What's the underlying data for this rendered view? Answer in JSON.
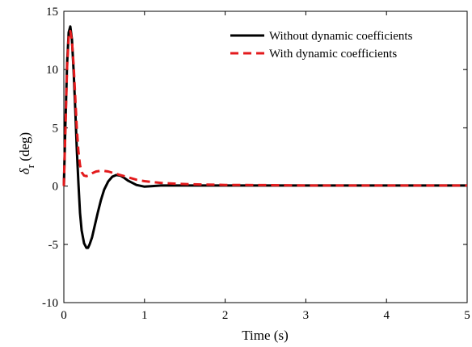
{
  "chart_data": {
    "type": "line",
    "title": "",
    "xlabel": "Time (s)",
    "ylabel": {
      "symbol": "δ",
      "subscript": "r",
      "unit": " (deg)"
    },
    "xlim": [
      0,
      5
    ],
    "ylim": [
      -10,
      15
    ],
    "xticks": [
      0,
      1,
      2,
      3,
      4,
      5
    ],
    "yticks": [
      -10,
      -5,
      0,
      5,
      10,
      15
    ],
    "grid": false,
    "legend_position": "top-right",
    "series": [
      {
        "name": "Without dynamic coefficients",
        "color": "#000000",
        "style": "solid",
        "x": [
          0,
          0.02,
          0.04,
          0.06,
          0.08,
          0.1,
          0.12,
          0.14,
          0.16,
          0.18,
          0.2,
          0.22,
          0.25,
          0.28,
          0.3,
          0.32,
          0.35,
          0.38,
          0.42,
          0.46,
          0.5,
          0.55,
          0.6,
          0.65,
          0.7,
          0.75,
          0.8,
          0.9,
          1.0,
          1.1,
          1.2,
          1.5,
          2.0,
          3.0,
          4.0,
          5.0
        ],
        "y": [
          0,
          5.5,
          10.5,
          13.2,
          13.7,
          12.6,
          10.0,
          6.8,
          3.2,
          0.3,
          -2.3,
          -3.8,
          -4.9,
          -5.3,
          -5.3,
          -5.0,
          -4.4,
          -3.5,
          -2.3,
          -1.2,
          -0.3,
          0.4,
          0.8,
          0.95,
          0.9,
          0.7,
          0.45,
          0.1,
          -0.05,
          0.0,
          0.05,
          0.05,
          0.05,
          0.05,
          0.05,
          0.05
        ]
      },
      {
        "name": "With dynamic coefficients",
        "color": "#e31a1c",
        "style": "dashed",
        "x": [
          0,
          0.02,
          0.04,
          0.06,
          0.08,
          0.1,
          0.12,
          0.14,
          0.16,
          0.18,
          0.2,
          0.22,
          0.25,
          0.28,
          0.3,
          0.35,
          0.4,
          0.45,
          0.5,
          0.55,
          0.6,
          0.7,
          0.8,
          0.9,
          1.0,
          1.2,
          1.4,
          1.6,
          2.0,
          2.5,
          3.0,
          4.0,
          5.0
        ],
        "y": [
          0,
          5.0,
          10.2,
          12.8,
          13.3,
          12.5,
          10.5,
          7.8,
          5.0,
          3.0,
          1.8,
          1.2,
          0.9,
          0.85,
          0.9,
          1.1,
          1.25,
          1.3,
          1.3,
          1.25,
          1.15,
          0.95,
          0.75,
          0.55,
          0.42,
          0.28,
          0.2,
          0.15,
          0.1,
          0.08,
          0.05,
          0.05,
          0.05
        ]
      }
    ]
  }
}
